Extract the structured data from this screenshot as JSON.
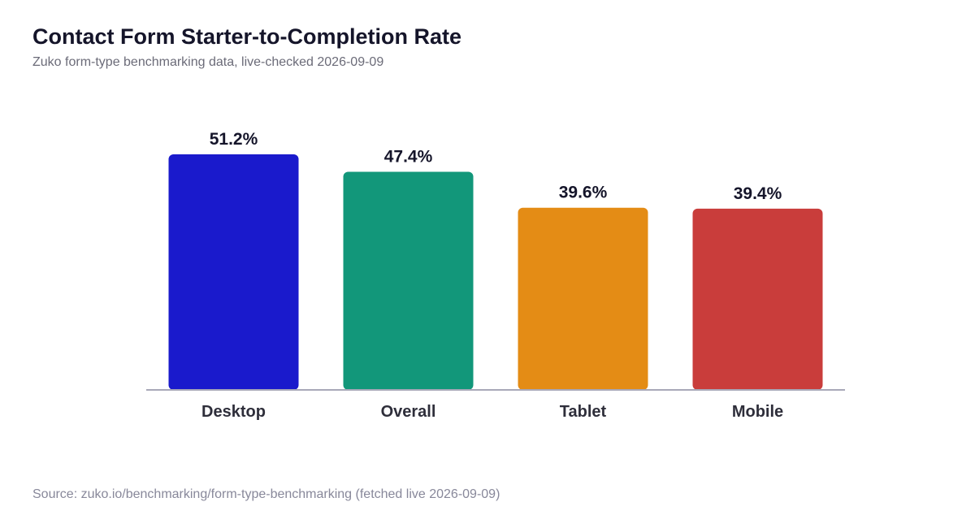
{
  "title": "Contact Form Starter-to-Completion Rate",
  "subtitle": "Zuko form-type benchmarking data, live-checked 2026-09-09",
  "source": "Source: zuko.io/benchmarking/form-type-benchmarking (fetched live 2026-09-09)",
  "chart_data": {
    "type": "bar",
    "categories": [
      "Desktop",
      "Overall",
      "Tablet",
      "Mobile"
    ],
    "values": [
      51.2,
      47.4,
      39.6,
      39.4
    ],
    "value_labels": [
      "51.2%",
      "47.4%",
      "39.6%",
      "39.4%"
    ],
    "colors": [
      "#1a1acc",
      "#12977a",
      "#e48c15",
      "#c93d3b"
    ],
    "baseline_color": "#a8a8b8",
    "ylim": [
      0,
      51.2
    ],
    "grid": false,
    "legend": "none"
  }
}
